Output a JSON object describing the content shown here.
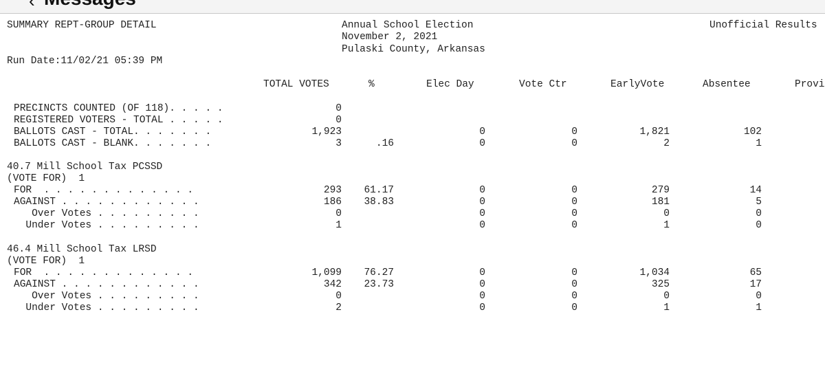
{
  "window": {
    "title": "Messages"
  },
  "report": {
    "left_header": "SUMMARY REPT-GROUP DETAIL",
    "election": "Annual School Election",
    "date": "November 2, 2021",
    "county": "Pulaski County, Arkansas",
    "status": "Unofficial Results",
    "run_date": "Run Date:11/02/21 05:39 PM"
  },
  "columns": [
    "TOTAL VOTES",
    "%",
    "Elec Day",
    "Vote Ctr",
    "EarlyVote",
    "Absentee",
    "Provi"
  ],
  "summary_rows": [
    {
      "label": "PRECINCTS COUNTED (OF 118). . . . .",
      "total": "0",
      "pct": "",
      "elec": "",
      "ctr": "",
      "early": "",
      "abs": ""
    },
    {
      "label": "REGISTERED VOTERS - TOTAL . . . . .",
      "total": "0",
      "pct": "",
      "elec": "",
      "ctr": "",
      "early": "",
      "abs": ""
    },
    {
      "label": "BALLOTS CAST - TOTAL. . . . . . .",
      "total": "1,923",
      "pct": "",
      "elec": "0",
      "ctr": "0",
      "early": "1,821",
      "abs": "102"
    },
    {
      "label": "BALLOTS CAST - BLANK. . . . . . .",
      "total": "3",
      "pct": ".16",
      "elec": "0",
      "ctr": "0",
      "early": "2",
      "abs": "1"
    }
  ],
  "races": [
    {
      "title": "40.7 Mill School Tax PCSSD",
      "vote_for": "(VOTE FOR)  1",
      "rows": [
        {
          "label": "FOR  . . . . . . . . . . . . .",
          "total": "293",
          "pct": "61.17",
          "elec": "0",
          "ctr": "0",
          "early": "279",
          "abs": "14"
        },
        {
          "label": "AGAINST . . . . . . . . . . . .",
          "total": "186",
          "pct": "38.83",
          "elec": "0",
          "ctr": "0",
          "early": "181",
          "abs": "5"
        },
        {
          "label": "   Over Votes . . . . . . . . .",
          "total": "0",
          "pct": "",
          "elec": "0",
          "ctr": "0",
          "early": "0",
          "abs": "0"
        },
        {
          "label": "  Under Votes . . . . . . . . .",
          "total": "1",
          "pct": "",
          "elec": "0",
          "ctr": "0",
          "early": "1",
          "abs": "0"
        }
      ]
    },
    {
      "title": "46.4 Mill School Tax LRSD",
      "vote_for": "(VOTE FOR)  1",
      "rows": [
        {
          "label": "FOR  . . . . . . . . . . . . .",
          "total": "1,099",
          "pct": "76.27",
          "elec": "0",
          "ctr": "0",
          "early": "1,034",
          "abs": "65"
        },
        {
          "label": "AGAINST . . . . . . . . . . . .",
          "total": "342",
          "pct": "23.73",
          "elec": "0",
          "ctr": "0",
          "early": "325",
          "abs": "17"
        },
        {
          "label": "   Over Votes . . . . . . . . .",
          "total": "0",
          "pct": "",
          "elec": "0",
          "ctr": "0",
          "early": "0",
          "abs": "0"
        },
        {
          "label": "  Under Votes . . . . . . . . .",
          "total": "2",
          "pct": "",
          "elec": "0",
          "ctr": "0",
          "early": "1",
          "abs": "1"
        }
      ]
    }
  ]
}
